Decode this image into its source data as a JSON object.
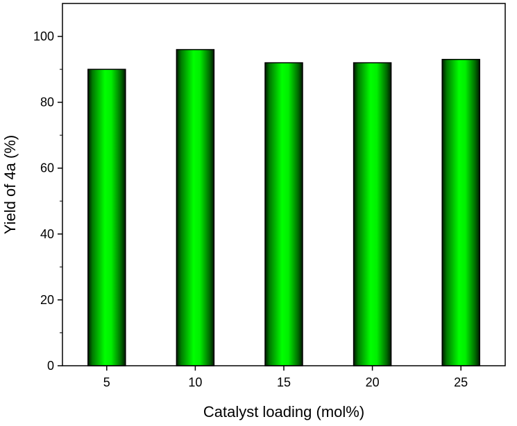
{
  "chart_data": {
    "type": "bar",
    "title": "",
    "xlabel": "Catalyst loading (mol%)",
    "ylabel": "Yield of 4a (%)",
    "categories": [
      "5",
      "10",
      "15",
      "20",
      "25"
    ],
    "values": [
      90,
      96,
      92,
      92,
      93
    ],
    "ylim": [
      0,
      110
    ],
    "yticks": [
      0,
      20,
      40,
      60,
      80,
      100
    ],
    "grid": false,
    "legend": "none",
    "colors": {
      "bar_center": "#00ff00",
      "bar_edge": "#001a00",
      "frame": "#000000"
    }
  }
}
